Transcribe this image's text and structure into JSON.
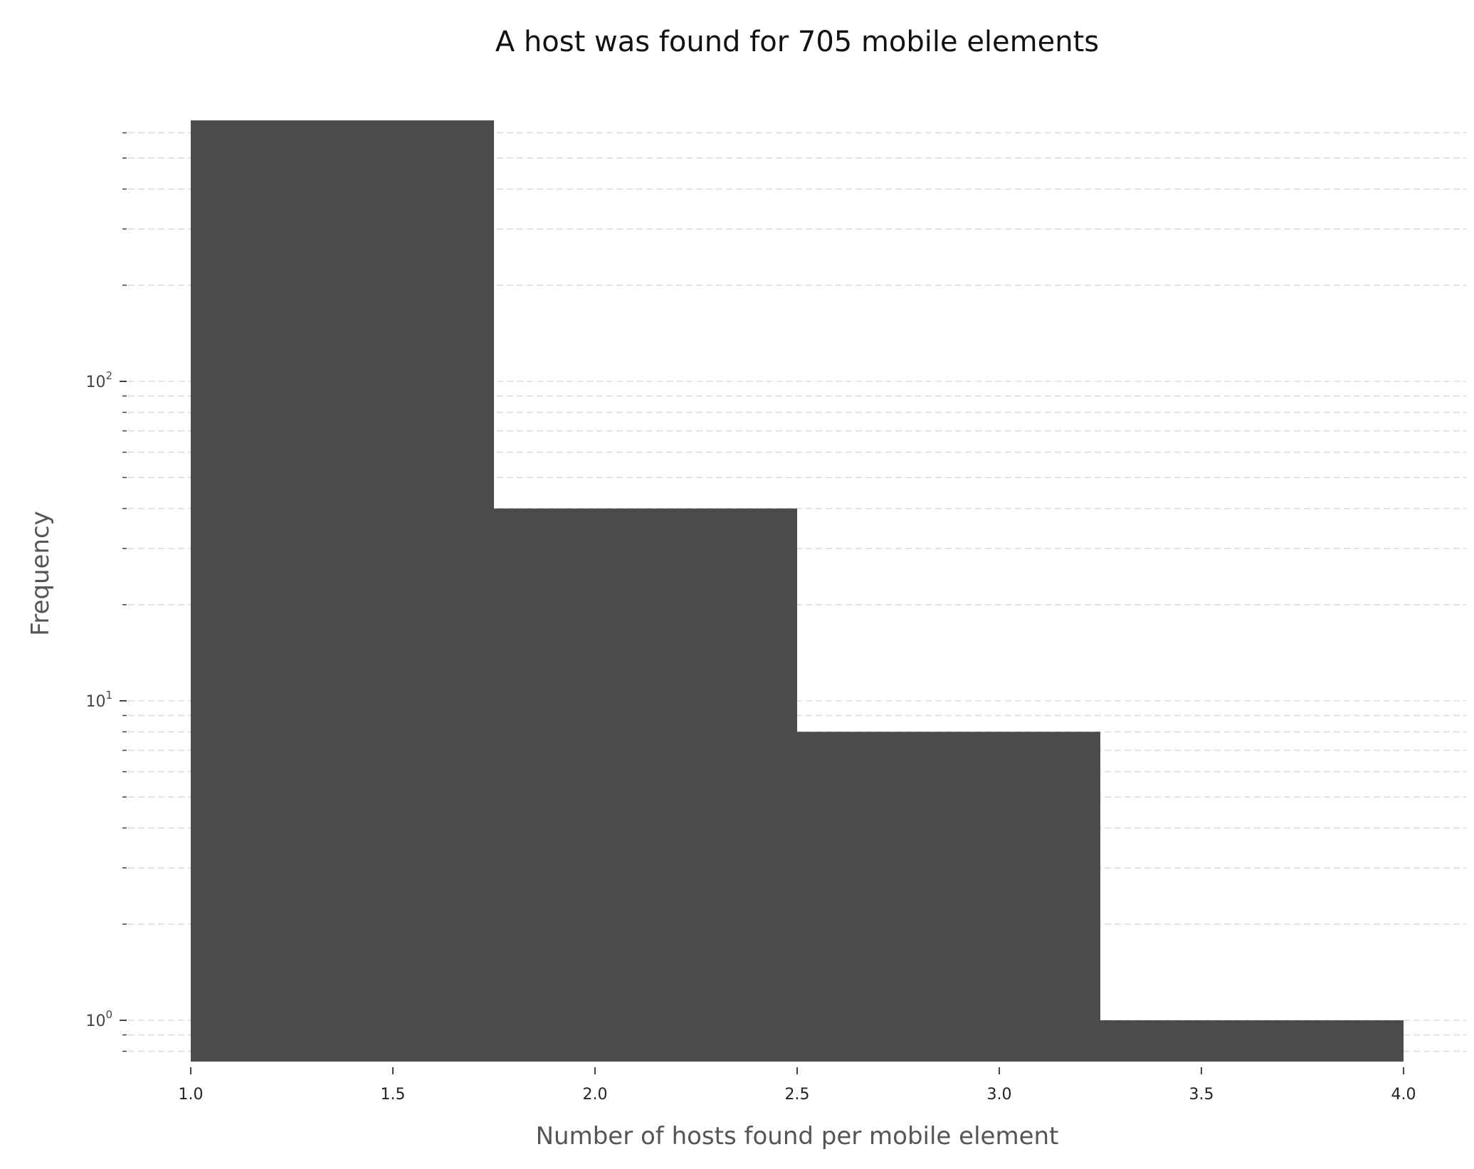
{
  "chart_data": {
    "type": "bar",
    "title": "A host was found for 705 mobile elements",
    "xlabel": "Number of hosts found per mobile element",
    "ylabel": "Frequency",
    "xlim": [
      1.0,
      4.0
    ],
    "ylim": [
      0.75,
      650
    ],
    "yscale": "log",
    "grid": "y-dashed",
    "bins": [
      {
        "x0": 1.0,
        "x1": 1.75,
        "value": 656
      },
      {
        "x0": 1.75,
        "x1": 2.5,
        "value": 40
      },
      {
        "x0": 2.5,
        "x1": 3.25,
        "value": 8
      },
      {
        "x0": 3.25,
        "x1": 4.0,
        "value": 1
      }
    ],
    "xticks": [
      "1.0",
      "1.5",
      "2.0",
      "2.5",
      "3.0",
      "3.5",
      "4.0"
    ],
    "xtick_values": [
      1.0,
      1.5,
      2.0,
      2.5,
      3.0,
      3.5,
      4.0
    ],
    "yticks": [
      {
        "base": "10",
        "exp": "0",
        "value": 1
      },
      {
        "base": "10",
        "exp": "1",
        "value": 10
      },
      {
        "base": "10",
        "exp": "2",
        "value": 100
      }
    ],
    "bar_color": "#4b4b4b"
  }
}
